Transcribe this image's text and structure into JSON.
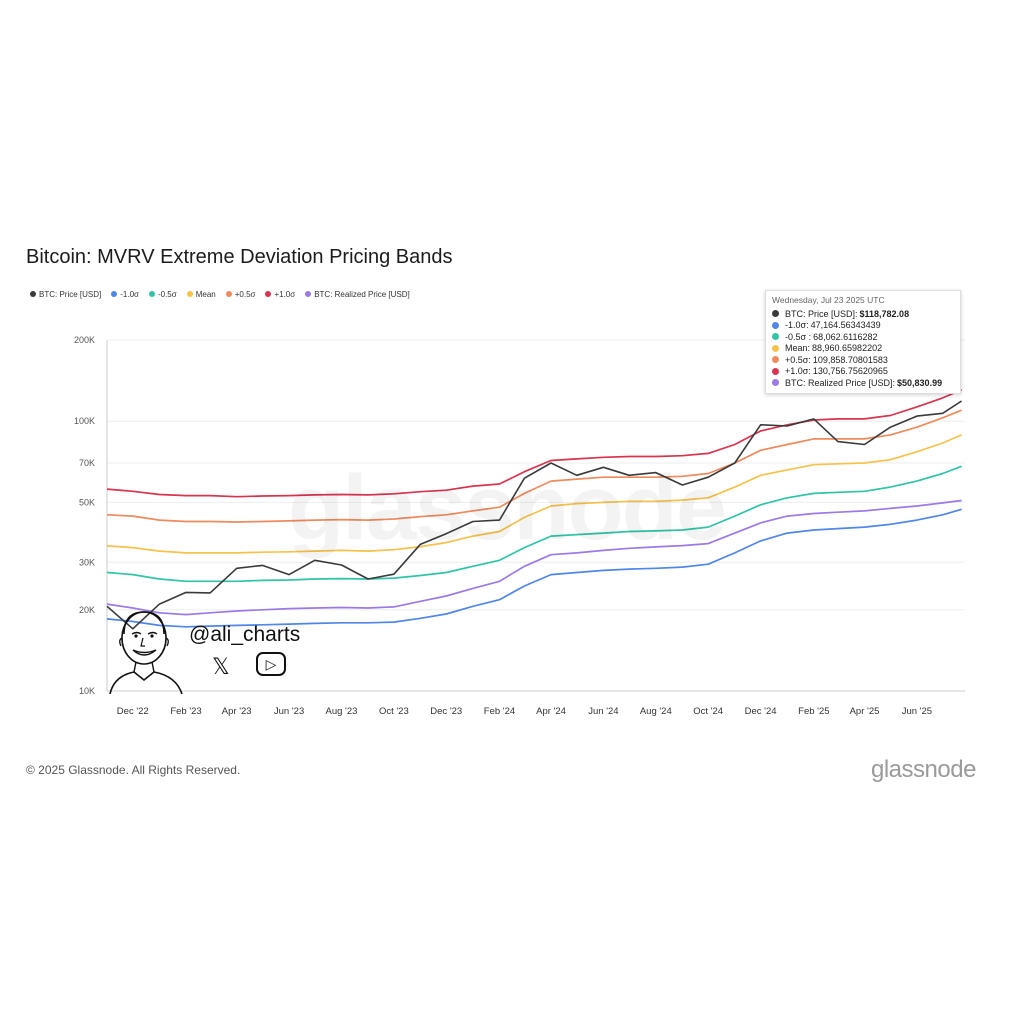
{
  "title": "Bitcoin: MVRV Extreme Deviation Pricing Bands",
  "legend": [
    {
      "label": "BTC: Price [USD]",
      "color": "#3a3a3a"
    },
    {
      "label": "-1.0σ",
      "color": "#4f86e8"
    },
    {
      "label": "-0.5σ",
      "color": "#2fc4a6"
    },
    {
      "label": "Mean",
      "color": "#f5c24a"
    },
    {
      "label": "+0.5σ",
      "color": "#ee8a5e"
    },
    {
      "label": "+1.0σ",
      "color": "#d8344f"
    },
    {
      "label": "BTC: Realized Price [USD]",
      "color": "#9b7ae6"
    }
  ],
  "tooltip": {
    "date": "Wednesday, Jul 23 2025 UTC",
    "rows": [
      {
        "label": "BTC: Price [USD]:",
        "value": "$118,782.08",
        "color": "#3a3a3a",
        "bold": true
      },
      {
        "label": "-1.0σ:",
        "value": "47,164.56343439",
        "color": "#4f86e8",
        "bold": false
      },
      {
        "label": "-0.5σ :",
        "value": "68,062.6116282",
        "color": "#2fc4a6",
        "bold": false
      },
      {
        "label": "Mean:",
        "value": "88,960.65982202",
        "color": "#f5c24a",
        "bold": false
      },
      {
        "label": "+0.5σ:",
        "value": "109,858.70801583",
        "color": "#ee8a5e",
        "bold": false
      },
      {
        "label": "+1.0σ:",
        "value": "130,756.75620965",
        "color": "#d8344f",
        "bold": false
      },
      {
        "label": "BTC: Realized Price [USD]:",
        "value": "$50,830.99",
        "color": "#9b7ae6",
        "bold": true
      }
    ]
  },
  "footer": "© 2025 Glassnode. All Rights Reserved.",
  "brand": "glassnode",
  "watermark": "glassnode",
  "overlay": {
    "handle": "@ali_charts",
    "x_icon": "𝕏",
    "youtube_icon": "▷"
  },
  "chart_data": {
    "type": "line",
    "title": "Bitcoin: MVRV Extreme Deviation Pricing Bands",
    "yscale": "log",
    "ylim": [
      10000,
      200000
    ],
    "y_ticks": [
      {
        "value": 10000,
        "label": "10K"
      },
      {
        "value": 20000,
        "label": "20K"
      },
      {
        "value": 30000,
        "label": "30K"
      },
      {
        "value": 50000,
        "label": "50K"
      },
      {
        "value": 70000,
        "label": "70K"
      },
      {
        "value": 100000,
        "label": "100K"
      },
      {
        "value": 200000,
        "label": "200K"
      }
    ],
    "xlim": [
      "2022-11-01",
      "2025-07-27"
    ],
    "x_ticks": [
      {
        "date": "2022-12-01",
        "label": "Dec '22"
      },
      {
        "date": "2023-02-01",
        "label": "Feb '23"
      },
      {
        "date": "2023-04-01",
        "label": "Apr '23"
      },
      {
        "date": "2023-06-01",
        "label": "Jun '23"
      },
      {
        "date": "2023-08-01",
        "label": "Aug '23"
      },
      {
        "date": "2023-10-01",
        "label": "Oct '23"
      },
      {
        "date": "2023-12-01",
        "label": "Dec '23"
      },
      {
        "date": "2024-02-01",
        "label": "Feb '24"
      },
      {
        "date": "2024-04-01",
        "label": "Apr '24"
      },
      {
        "date": "2024-06-01",
        "label": "Jun '24"
      },
      {
        "date": "2024-08-01",
        "label": "Aug '24"
      },
      {
        "date": "2024-10-01",
        "label": "Oct '24"
      },
      {
        "date": "2024-12-01",
        "label": "Dec '24"
      },
      {
        "date": "2025-02-01",
        "label": "Feb '25"
      },
      {
        "date": "2025-04-01",
        "label": "Apr '25"
      },
      {
        "date": "2025-06-01",
        "label": "Jun '25"
      }
    ],
    "x": [
      "2022-11-01",
      "2022-12-01",
      "2023-01-01",
      "2023-02-01",
      "2023-03-01",
      "2023-04-01",
      "2023-05-01",
      "2023-06-01",
      "2023-07-01",
      "2023-08-01",
      "2023-09-01",
      "2023-10-01",
      "2023-11-01",
      "2023-12-01",
      "2024-01-01",
      "2024-02-01",
      "2024-03-01",
      "2024-04-01",
      "2024-05-01",
      "2024-06-01",
      "2024-07-01",
      "2024-08-01",
      "2024-09-01",
      "2024-10-01",
      "2024-11-01",
      "2024-12-01",
      "2025-01-01",
      "2025-02-01",
      "2025-03-01",
      "2025-04-01",
      "2025-05-01",
      "2025-06-01",
      "2025-07-01",
      "2025-07-23"
    ],
    "series": [
      {
        "name": "+1.0σ",
        "color": "#d8344f",
        "values": [
          56000,
          55000,
          53500,
          53000,
          53000,
          52500,
          52800,
          53000,
          53300,
          53500,
          53300,
          53800,
          54800,
          55500,
          57500,
          58500,
          65000,
          71500,
          72500,
          73500,
          74000,
          74000,
          74500,
          76000,
          82000,
          92000,
          97000,
          101000,
          102000,
          102000,
          105000,
          113000,
          122000,
          130757
        ]
      },
      {
        "name": "+0.5σ",
        "color": "#ee8a5e",
        "values": [
          45000,
          44500,
          43000,
          42500,
          42500,
          42300,
          42500,
          42700,
          43000,
          43200,
          43000,
          43400,
          44300,
          45000,
          46500,
          48000,
          54000,
          60000,
          61000,
          62000,
          62000,
          62000,
          62500,
          64000,
          70000,
          78000,
          82000,
          86000,
          86000,
          86000,
          89000,
          95000,
          103000,
          109859
        ]
      },
      {
        "name": "Mean",
        "color": "#f5c24a",
        "values": [
          34500,
          34000,
          33000,
          32500,
          32500,
          32500,
          32700,
          32800,
          33000,
          33200,
          33000,
          33400,
          34300,
          35500,
          37500,
          39000,
          44000,
          48500,
          49500,
          50000,
          50500,
          50500,
          51000,
          52000,
          57000,
          63000,
          66000,
          69000,
          69500,
          70000,
          72000,
          77000,
          83000,
          88961
        ]
      },
      {
        "name": "-0.5σ",
        "color": "#2fc4a6",
        "values": [
          27500,
          27000,
          26000,
          25500,
          25500,
          25500,
          25700,
          25800,
          26000,
          26100,
          26000,
          26200,
          26800,
          27500,
          29000,
          30500,
          34000,
          37500,
          38000,
          38500,
          39000,
          39200,
          39500,
          40500,
          44500,
          49000,
          52000,
          54000,
          54500,
          55000,
          57000,
          60000,
          64000,
          68063
        ]
      },
      {
        "name": "-1.0σ",
        "color": "#4f86e8",
        "values": [
          18500,
          18100,
          17500,
          17300,
          17400,
          17500,
          17600,
          17700,
          17800,
          17900,
          17900,
          18000,
          18600,
          19300,
          20600,
          21800,
          24500,
          27000,
          27500,
          28000,
          28300,
          28500,
          28800,
          29500,
          32500,
          36000,
          38500,
          39500,
          40000,
          40500,
          41500,
          43000,
          45000,
          47165
        ]
      },
      {
        "name": "BTC: Realized Price [USD]",
        "color": "#9b7ae6",
        "values": [
          21000,
          20300,
          19500,
          19200,
          19500,
          19800,
          20000,
          20200,
          20300,
          20400,
          20300,
          20500,
          21500,
          22500,
          24000,
          25500,
          29000,
          32000,
          32500,
          33200,
          33800,
          34200,
          34600,
          35200,
          38500,
          42000,
          44500,
          45500,
          46000,
          46500,
          47500,
          48500,
          49800,
          50831
        ]
      },
      {
        "name": "BTC: Price [USD]",
        "color": "#3a3a3a",
        "values": [
          20600,
          17000,
          21000,
          23200,
          23100,
          28500,
          29200,
          27000,
          30500,
          29300,
          26000,
          27100,
          35000,
          38300,
          42500,
          43000,
          61500,
          70000,
          63000,
          67500,
          63000,
          64500,
          58000,
          62000,
          70000,
          97000,
          96000,
          102000,
          84000,
          82000,
          95000,
          104500,
          107000,
          118782
        ]
      }
    ]
  }
}
